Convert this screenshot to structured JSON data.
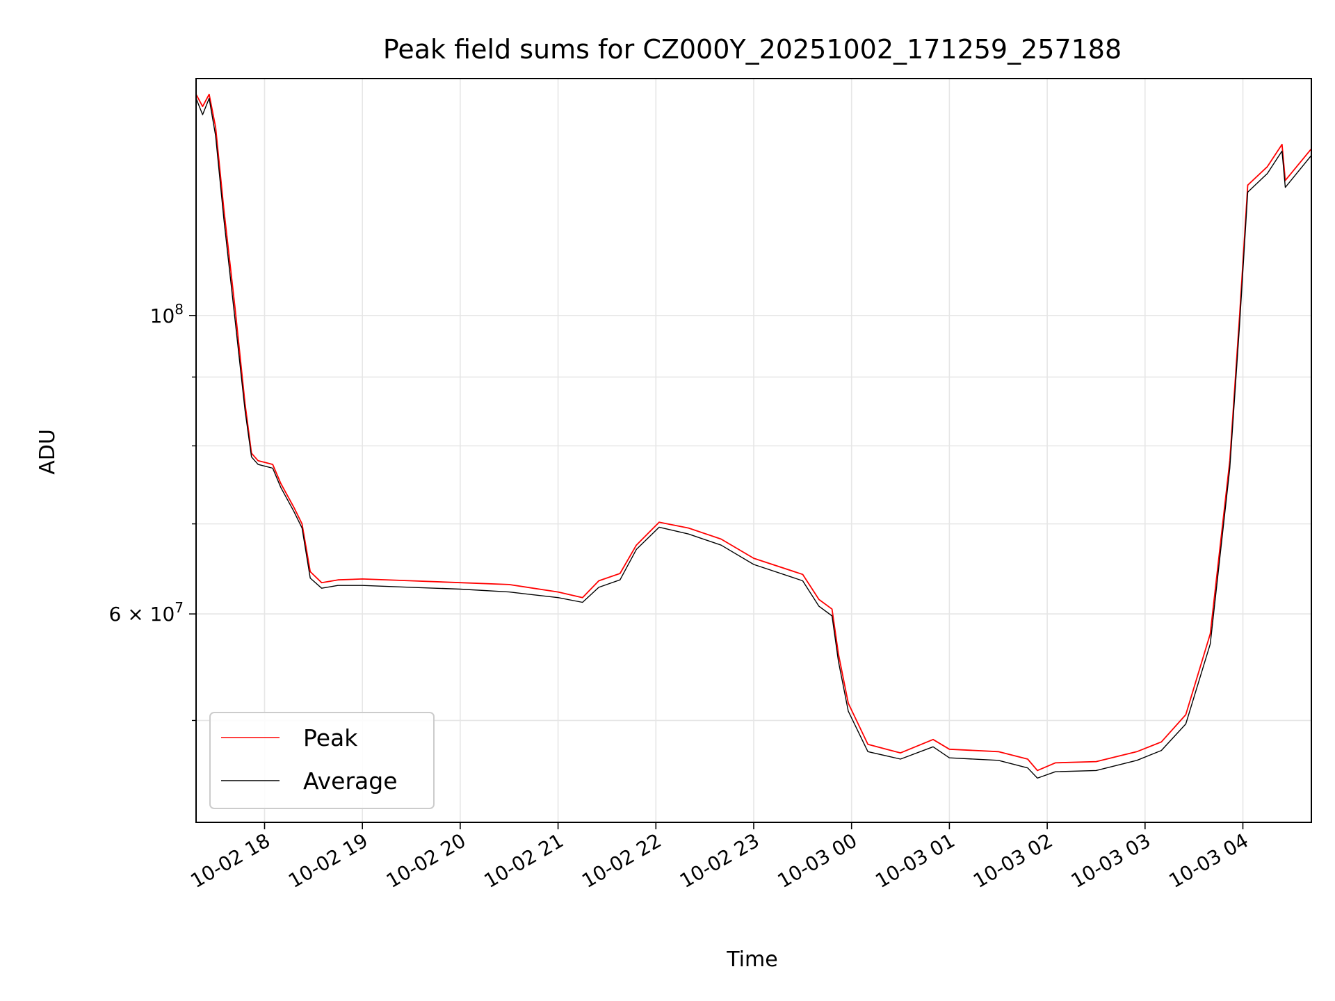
{
  "chart_data": {
    "type": "line",
    "title": "Peak field sums for CZ000Y_20251002_171259_257188",
    "xlabel": "Time",
    "ylabel": "ADU",
    "y_scale": "log",
    "ylim": [
      42000000,
      150000000
    ],
    "xlim": [
      "2025-10-02 17:18",
      "2025-10-03 04:42"
    ],
    "x_tick_labels": [
      "10-02 18",
      "10-02 19",
      "10-02 20",
      "10-02 21",
      "10-02 22",
      "10-02 23",
      "10-03 00",
      "10-03 01",
      "10-03 02",
      "10-03 03",
      "10-03 04"
    ],
    "x_ticks": [
      "2025-10-02 18:00",
      "2025-10-02 19:00",
      "2025-10-02 20:00",
      "2025-10-02 21:00",
      "2025-10-02 22:00",
      "2025-10-02 23:00",
      "2025-10-03 00:00",
      "2025-10-03 01:00",
      "2025-10-03 02:00",
      "2025-10-03 03:00",
      "2025-10-03 04:00"
    ],
    "y_major_ticks": [
      {
        "value": 60000000,
        "mantissa": "6",
        "exponent": "7"
      },
      {
        "value": 100000000,
        "mantissa": "",
        "exponent": "8"
      }
    ],
    "y_minor_ticks": [
      50000000,
      60000000,
      70000000,
      80000000,
      90000000
    ],
    "tick_base": "10",
    "times_sign": "×",
    "grid": true,
    "legend_position": "lower-left",
    "series": [
      {
        "name": "Peak",
        "color": "#ff0000",
        "points": [
          [
            "2025-10-02 17:18",
            146000000
          ],
          [
            "2025-10-02 17:22",
            143000000
          ],
          [
            "2025-10-02 17:26",
            146000000
          ],
          [
            "2025-10-02 17:30",
            138000000
          ],
          [
            "2025-10-02 17:35",
            120000000
          ],
          [
            "2025-10-02 17:42",
            101000000
          ],
          [
            "2025-10-02 17:48",
            86000000
          ],
          [
            "2025-10-02 17:52",
            79000000
          ],
          [
            "2025-10-02 17:56",
            78000000
          ],
          [
            "2025-10-02 18:05",
            77500000
          ],
          [
            "2025-10-02 18:10",
            75000000
          ],
          [
            "2025-10-02 18:18",
            72000000
          ],
          [
            "2025-10-02 18:23",
            70000000
          ],
          [
            "2025-10-02 18:28",
            64500000
          ],
          [
            "2025-10-02 18:35",
            63300000
          ],
          [
            "2025-10-02 18:45",
            63600000
          ],
          [
            "2025-10-02 19:00",
            63700000
          ],
          [
            "2025-10-02 19:30",
            63500000
          ],
          [
            "2025-10-02 20:00",
            63300000
          ],
          [
            "2025-10-02 20:30",
            63100000
          ],
          [
            "2025-10-02 21:00",
            62300000
          ],
          [
            "2025-10-02 21:15",
            61700000
          ],
          [
            "2025-10-02 21:25",
            63500000
          ],
          [
            "2025-10-02 21:38",
            64300000
          ],
          [
            "2025-10-02 21:48",
            67500000
          ],
          [
            "2025-10-02 22:02",
            70200000
          ],
          [
            "2025-10-02 22:20",
            69500000
          ],
          [
            "2025-10-02 22:40",
            68200000
          ],
          [
            "2025-10-02 23:00",
            66000000
          ],
          [
            "2025-10-02 23:30",
            64200000
          ],
          [
            "2025-10-02 23:40",
            61500000
          ],
          [
            "2025-10-02 23:48",
            60500000
          ],
          [
            "2025-10-02 23:52",
            56000000
          ],
          [
            "2025-10-02 23:58",
            51500000
          ],
          [
            "2025-10-03 00:10",
            48000000
          ],
          [
            "2025-10-03 00:30",
            47300000
          ],
          [
            "2025-10-03 00:50",
            48400000
          ],
          [
            "2025-10-03 01:00",
            47600000
          ],
          [
            "2025-10-03 01:30",
            47400000
          ],
          [
            "2025-10-03 01:48",
            46800000
          ],
          [
            "2025-10-03 01:54",
            45900000
          ],
          [
            "2025-10-03 02:05",
            46500000
          ],
          [
            "2025-10-03 02:30",
            46600000
          ],
          [
            "2025-10-03 02:55",
            47400000
          ],
          [
            "2025-10-03 03:10",
            48200000
          ],
          [
            "2025-10-03 03:25",
            50500000
          ],
          [
            "2025-10-03 03:40",
            58000000
          ],
          [
            "2025-10-03 03:52",
            78000000
          ],
          [
            "2025-10-03 03:58",
            100000000
          ],
          [
            "2025-10-03 04:03",
            125000000
          ],
          [
            "2025-10-03 04:15",
            129000000
          ],
          [
            "2025-10-03 04:24",
            134000000
          ],
          [
            "2025-10-03 04:26",
            126000000
          ],
          [
            "2025-10-03 04:42",
            133000000
          ]
        ]
      },
      {
        "name": "Average",
        "color": "#000000",
        "points": [
          [
            "2025-10-02 17:18",
            145000000
          ],
          [
            "2025-10-02 17:22",
            141000000
          ],
          [
            "2025-10-02 17:26",
            145000000
          ],
          [
            "2025-10-02 17:30",
            136000000
          ],
          [
            "2025-10-02 17:35",
            118000000
          ],
          [
            "2025-10-02 17:42",
            99000000
          ],
          [
            "2025-10-02 17:48",
            85000000
          ],
          [
            "2025-10-02 17:52",
            78500000
          ],
          [
            "2025-10-02 17:56",
            77500000
          ],
          [
            "2025-10-02 18:05",
            77000000
          ],
          [
            "2025-10-02 18:10",
            74500000
          ],
          [
            "2025-10-02 18:18",
            71500000
          ],
          [
            "2025-10-02 18:23",
            69500000
          ],
          [
            "2025-10-02 18:28",
            63800000
          ],
          [
            "2025-10-02 18:35",
            62700000
          ],
          [
            "2025-10-02 18:45",
            63000000
          ],
          [
            "2025-10-02 19:00",
            63000000
          ],
          [
            "2025-10-02 19:30",
            62800000
          ],
          [
            "2025-10-02 20:00",
            62600000
          ],
          [
            "2025-10-02 20:30",
            62300000
          ],
          [
            "2025-10-02 21:00",
            61700000
          ],
          [
            "2025-10-02 21:15",
            61200000
          ],
          [
            "2025-10-02 21:25",
            62800000
          ],
          [
            "2025-10-02 21:38",
            63600000
          ],
          [
            "2025-10-02 21:48",
            67000000
          ],
          [
            "2025-10-02 22:02",
            69600000
          ],
          [
            "2025-10-02 22:20",
            68800000
          ],
          [
            "2025-10-02 22:40",
            67500000
          ],
          [
            "2025-10-02 23:00",
            65300000
          ],
          [
            "2025-10-02 23:30",
            63500000
          ],
          [
            "2025-10-02 23:40",
            60800000
          ],
          [
            "2025-10-02 23:48",
            59800000
          ],
          [
            "2025-10-02 23:52",
            55300000
          ],
          [
            "2025-10-02 23:58",
            50800000
          ],
          [
            "2025-10-03 00:10",
            47400000
          ],
          [
            "2025-10-03 00:30",
            46800000
          ],
          [
            "2025-10-03 00:50",
            47800000
          ],
          [
            "2025-10-03 01:00",
            46900000
          ],
          [
            "2025-10-03 01:30",
            46700000
          ],
          [
            "2025-10-03 01:48",
            46100000
          ],
          [
            "2025-10-03 01:54",
            45300000
          ],
          [
            "2025-10-03 02:05",
            45800000
          ],
          [
            "2025-10-03 02:30",
            45900000
          ],
          [
            "2025-10-03 02:55",
            46700000
          ],
          [
            "2025-10-03 03:10",
            47500000
          ],
          [
            "2025-10-03 03:25",
            49700000
          ],
          [
            "2025-10-03 03:40",
            57000000
          ],
          [
            "2025-10-03 03:52",
            77000000
          ],
          [
            "2025-10-03 03:58",
            98500000
          ],
          [
            "2025-10-03 04:03",
            123500000
          ],
          [
            "2025-10-03 04:15",
            127500000
          ],
          [
            "2025-10-03 04:24",
            132500000
          ],
          [
            "2025-10-03 04:26",
            124500000
          ],
          [
            "2025-10-03 04:42",
            131500000
          ]
        ]
      }
    ]
  }
}
